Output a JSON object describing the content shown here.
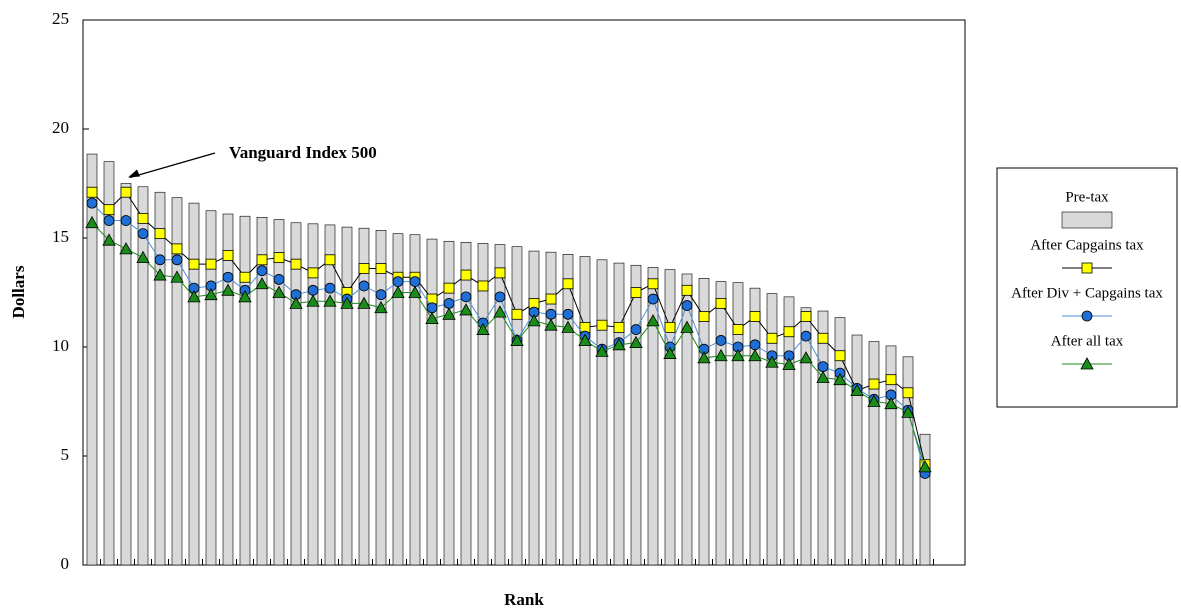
{
  "chart_data": {
    "type": "combo",
    "x_label": "Rank",
    "y_label": "Dollars",
    "annotation": "Vanguard Index 500",
    "annotation_index": 2,
    "categories": [
      null,
      null,
      null,
      null,
      null,
      null,
      null,
      null,
      null,
      null,
      null,
      null,
      null,
      null,
      null,
      null,
      null,
      null,
      null,
      null,
      null,
      null,
      null,
      null,
      null,
      null,
      null,
      null,
      null,
      null,
      null,
      null,
      null,
      null,
      null,
      null,
      null,
      null,
      null,
      null,
      null,
      null,
      null,
      null,
      null,
      null,
      null,
      null,
      null,
      null
    ],
    "ylim": [
      0,
      25
    ],
    "yticks": [
      0,
      5,
      10,
      15,
      20,
      25
    ],
    "grid": false,
    "legend": "right",
    "series": [
      {
        "name": "Pre-tax",
        "type": "bar",
        "color": "#d9d9d9",
        "values": [
          18.85,
          18.5,
          17.5,
          17.35,
          17.1,
          16.85,
          16.6,
          16.25,
          16.1,
          16.0,
          15.95,
          15.85,
          15.7,
          15.65,
          15.6,
          15.5,
          15.45,
          15.35,
          15.2,
          15.15,
          14.95,
          14.85,
          14.8,
          14.75,
          14.7,
          14.6,
          14.4,
          14.35,
          14.25,
          14.15,
          14.0,
          13.85,
          13.75,
          13.65,
          13.55,
          13.35,
          13.15,
          13.0,
          12.95,
          12.7,
          12.45,
          12.3,
          11.8,
          11.65,
          11.35,
          10.55,
          10.25,
          10.05,
          9.55,
          6.0
        ]
      },
      {
        "name": "After Capgains tax",
        "type": "line",
        "marker": "square",
        "color": "#ffff00",
        "line_color": "#000000",
        "values": [
          17.1,
          16.3,
          17.1,
          15.9,
          15.2,
          14.5,
          13.8,
          13.8,
          14.2,
          13.2,
          14.0,
          14.1,
          13.8,
          13.4,
          14.0,
          12.5,
          13.6,
          13.6,
          13.2,
          13.2,
          12.2,
          12.7,
          13.3,
          12.8,
          13.4,
          11.5,
          12.0,
          12.2,
          12.9,
          10.9,
          11.0,
          10.9,
          12.5,
          12.9,
          10.9,
          12.6,
          11.4,
          12.0,
          10.8,
          11.4,
          10.4,
          10.7,
          11.4,
          10.4,
          9.6,
          8.0,
          8.3,
          8.5,
          7.9,
          4.6
        ]
      },
      {
        "name": "After Div + Capgains tax",
        "type": "line",
        "marker": "circle",
        "color": "#1f6fd6",
        "line_color": "#4a90e2",
        "values": [
          16.6,
          15.8,
          15.8,
          15.2,
          14.0,
          14.0,
          12.7,
          12.8,
          13.2,
          12.6,
          13.5,
          13.1,
          12.4,
          12.6,
          12.7,
          12.2,
          12.8,
          12.4,
          13.0,
          13.0,
          11.8,
          12.0,
          12.3,
          11.1,
          12.3,
          10.3,
          11.6,
          11.5,
          11.5,
          10.5,
          9.9,
          10.2,
          10.8,
          12.2,
          10.0,
          11.9,
          9.9,
          10.3,
          10.0,
          10.1,
          9.6,
          9.6,
          10.5,
          9.1,
          8.8,
          8.1,
          7.6,
          7.8,
          7.1,
          4.2
        ]
      },
      {
        "name": "After all tax",
        "type": "line",
        "marker": "triangle",
        "color": "#1a8c1a",
        "line_color": "#1a8c1a",
        "values": [
          15.7,
          14.9,
          14.5,
          14.1,
          13.3,
          13.2,
          12.3,
          12.4,
          12.6,
          12.3,
          12.9,
          12.5,
          12.0,
          12.1,
          12.1,
          12.0,
          12.0,
          11.8,
          12.5,
          12.5,
          11.3,
          11.5,
          11.7,
          10.8,
          11.6,
          10.3,
          11.2,
          11.0,
          10.9,
          10.3,
          9.8,
          10.1,
          10.2,
          11.2,
          9.7,
          10.9,
          9.5,
          9.6,
          9.6,
          9.6,
          9.3,
          9.2,
          9.5,
          8.6,
          8.5,
          8.0,
          7.5,
          7.4,
          7.0,
          4.5
        ]
      }
    ]
  }
}
